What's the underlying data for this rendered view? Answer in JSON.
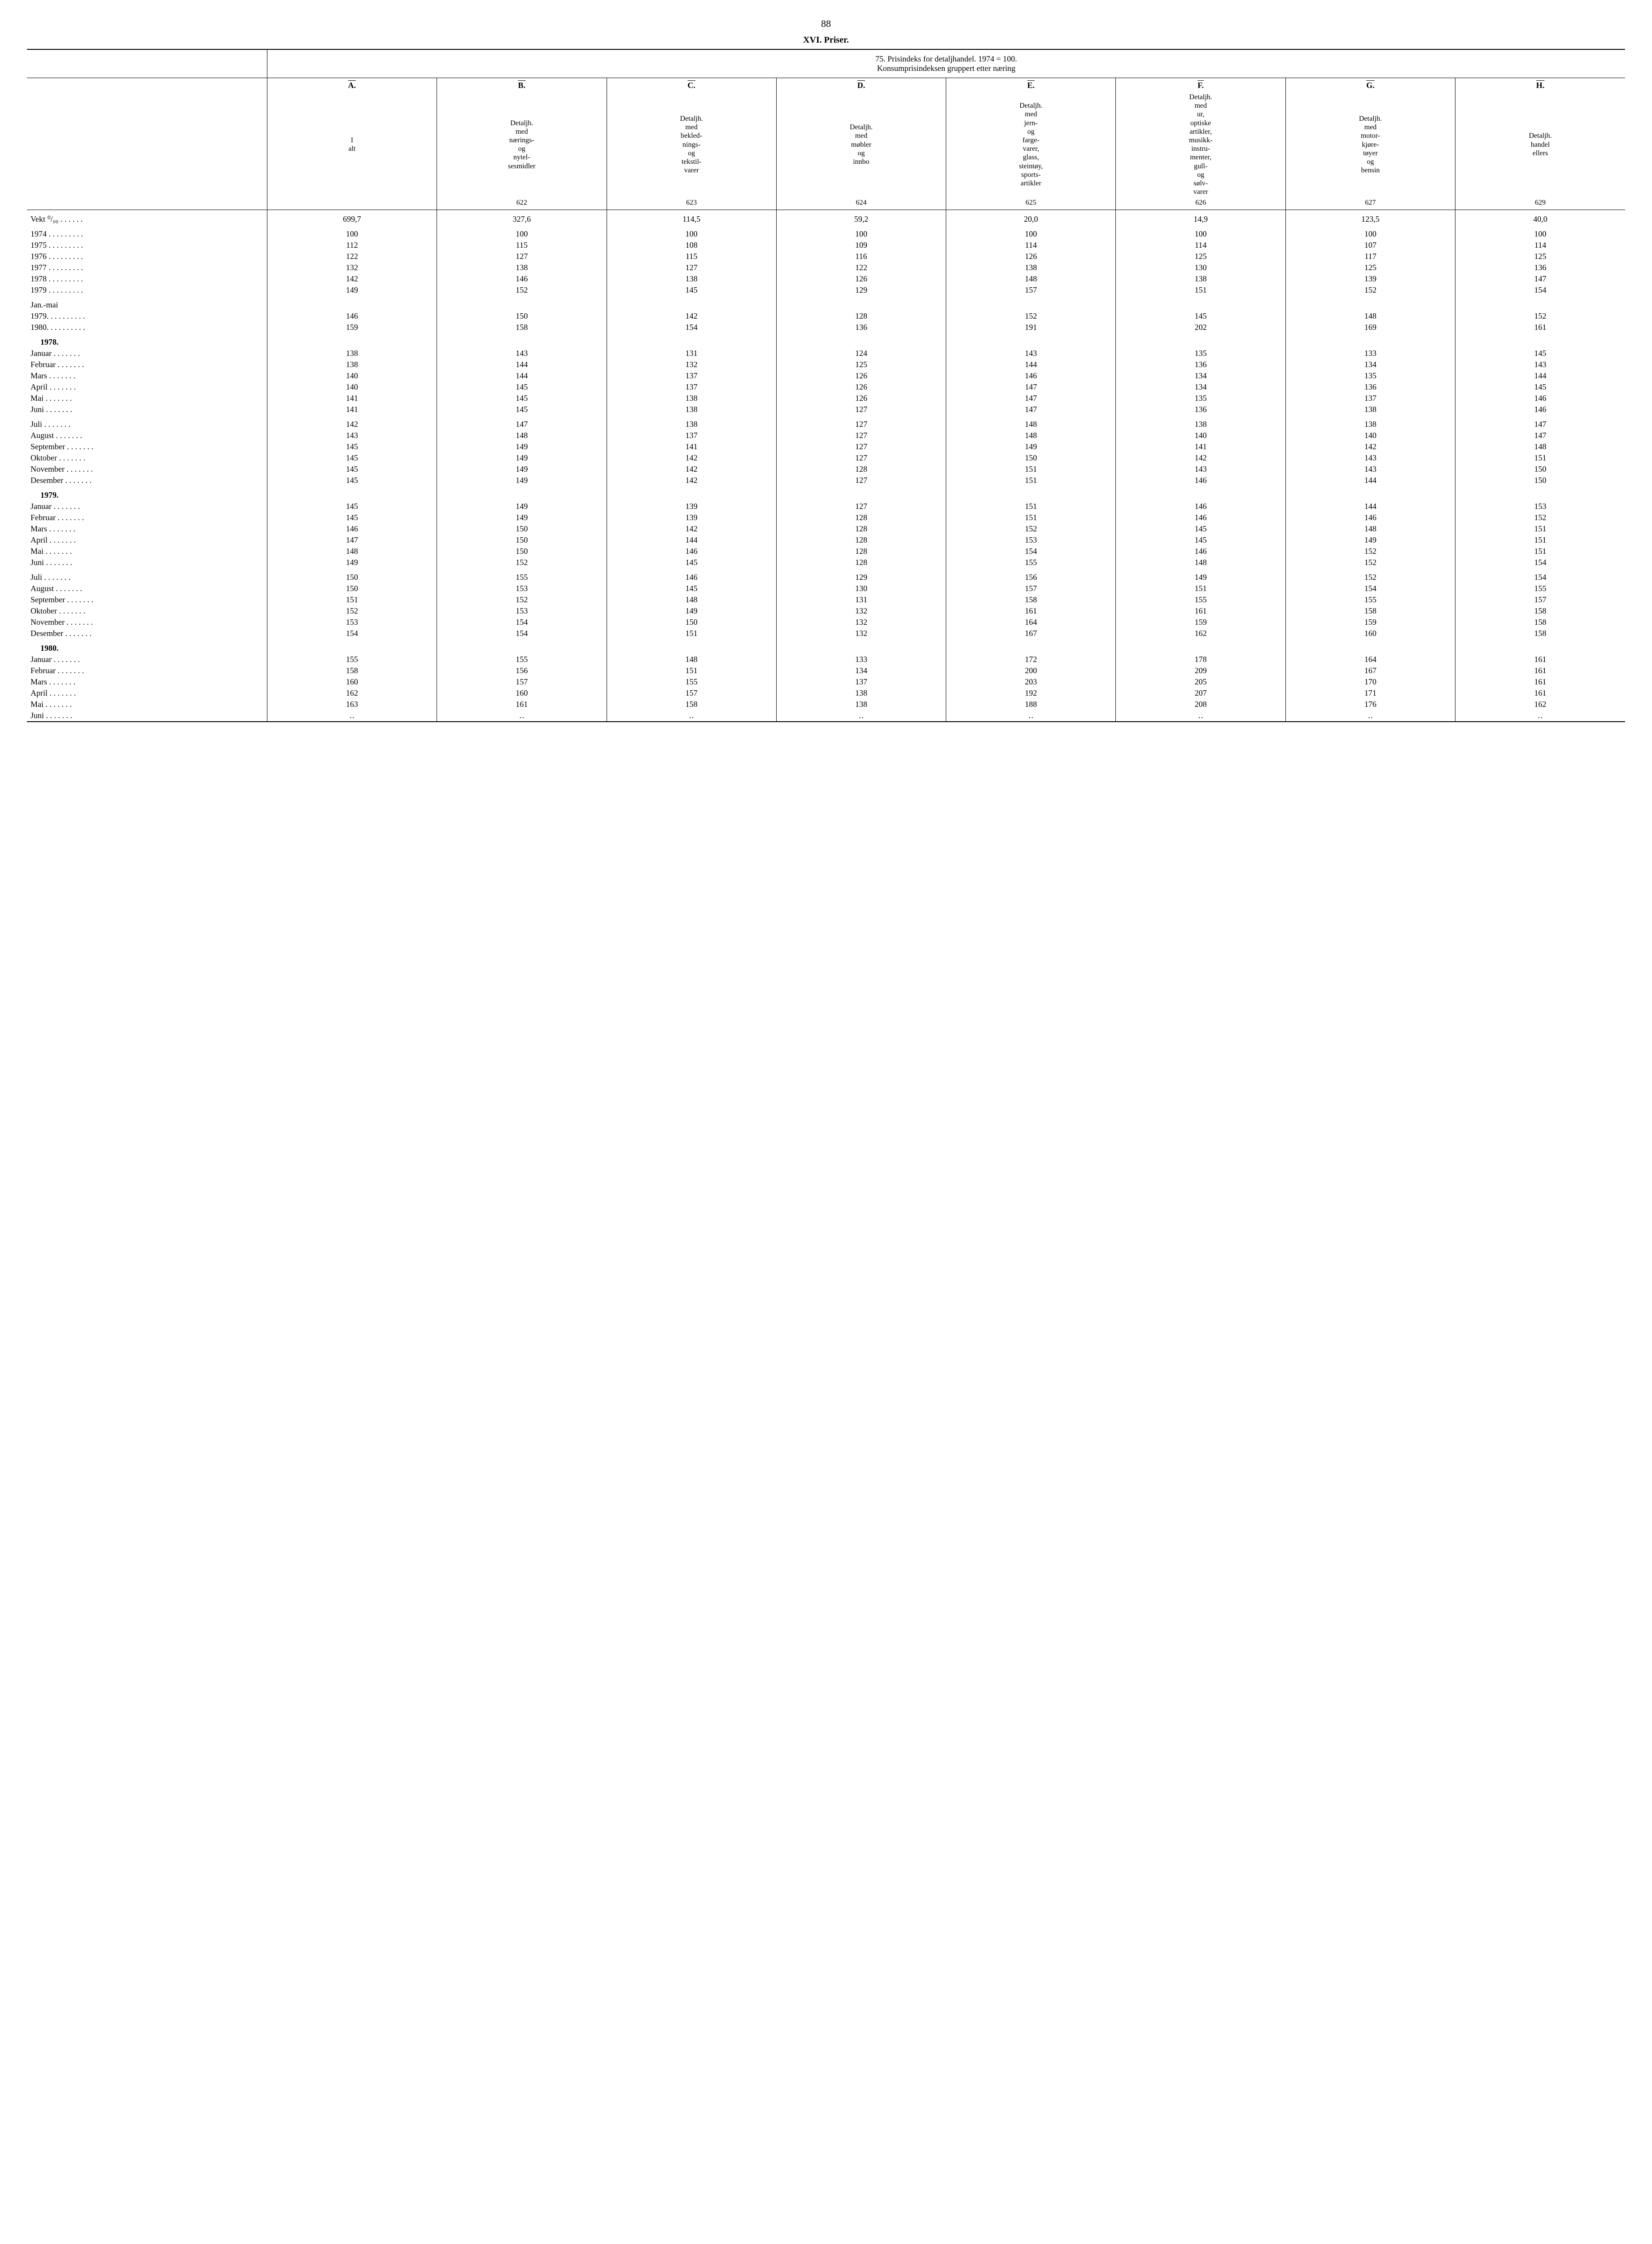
{
  "page_number": "88",
  "section_title": "XVI. Priser.",
  "table_title_line1": "75. Prisindeks for detaljhandel. 1974 = 100.",
  "table_title_line2": "Konsumprisindeksen gruppert etter næring",
  "columns": [
    {
      "letter": "A.",
      "desc": "I alt",
      "code": ""
    },
    {
      "letter": "B.",
      "desc": "Detaljh. med nærings- og nytel- sesmidler",
      "code": "622"
    },
    {
      "letter": "C.",
      "desc": "Detaljh. med bekled- nings- og tekstil- varer",
      "code": "623"
    },
    {
      "letter": "D.",
      "desc": "Detaljh. med møbler og innbo",
      "code": "624"
    },
    {
      "letter": "E.",
      "desc": "Detaljh. med jern- og farge- varer, glass, steintøy, sports- artikler",
      "code": "625"
    },
    {
      "letter": "F.",
      "desc": "Detaljh. med ur, optiske artikler, musikk- instru- menter, gull- og sølv- varer",
      "code": "626"
    },
    {
      "letter": "G.",
      "desc": "Detaljh. med motor- kjøre- tøyer og bensin",
      "code": "627"
    },
    {
      "letter": "H.",
      "desc": "Detaljh. handel ellers",
      "code": "629"
    }
  ],
  "weight_label": "Vekt ⁰/₀₀ . . . . . .",
  "weights": [
    "699,7",
    "327,6",
    "114,5",
    "59,2",
    "20,0",
    "14,9",
    "123,5",
    "40,0"
  ],
  "annual": [
    {
      "label": "1974",
      "v": [
        "100",
        "100",
        "100",
        "100",
        "100",
        "100",
        "100",
        "100"
      ]
    },
    {
      "label": "1975",
      "v": [
        "112",
        "115",
        "108",
        "109",
        "114",
        "114",
        "107",
        "114"
      ]
    },
    {
      "label": "1976",
      "v": [
        "122",
        "127",
        "115",
        "116",
        "126",
        "125",
        "117",
        "125"
      ]
    },
    {
      "label": "1977",
      "v": [
        "132",
        "138",
        "127",
        "122",
        "138",
        "130",
        "125",
        "136"
      ]
    },
    {
      "label": "1978",
      "v": [
        "142",
        "146",
        "138",
        "126",
        "148",
        "138",
        "139",
        "147"
      ]
    },
    {
      "label": "1979",
      "v": [
        "149",
        "152",
        "145",
        "129",
        "157",
        "151",
        "152",
        "154"
      ]
    }
  ],
  "janmai_label": "Jan.-mai",
  "janmai": [
    {
      "label": "1979",
      "v": [
        "146",
        "150",
        "142",
        "128",
        "152",
        "145",
        "148",
        "152"
      ]
    },
    {
      "label": "1980",
      "v": [
        "159",
        "158",
        "154",
        "136",
        "191",
        "202",
        "169",
        "161"
      ]
    }
  ],
  "blocks": [
    {
      "year": "1978.",
      "firstHalf": [
        {
          "label": "Januar",
          "v": [
            "138",
            "143",
            "131",
            "124",
            "143",
            "135",
            "133",
            "145"
          ]
        },
        {
          "label": "Februar",
          "v": [
            "138",
            "144",
            "132",
            "125",
            "144",
            "136",
            "134",
            "143"
          ]
        },
        {
          "label": "Mars",
          "v": [
            "140",
            "144",
            "137",
            "126",
            "146",
            "134",
            "135",
            "144"
          ]
        },
        {
          "label": "April",
          "v": [
            "140",
            "145",
            "137",
            "126",
            "147",
            "134",
            "136",
            "145"
          ]
        },
        {
          "label": "Mai",
          "v": [
            "141",
            "145",
            "138",
            "126",
            "147",
            "135",
            "137",
            "146"
          ]
        },
        {
          "label": "Juni",
          "v": [
            "141",
            "145",
            "138",
            "127",
            "147",
            "136",
            "138",
            "146"
          ]
        }
      ],
      "secondHalf": [
        {
          "label": "Juli",
          "v": [
            "142",
            "147",
            "138",
            "127",
            "148",
            "138",
            "138",
            "147"
          ]
        },
        {
          "label": "August",
          "v": [
            "143",
            "148",
            "137",
            "127",
            "148",
            "140",
            "140",
            "147"
          ]
        },
        {
          "label": "September",
          "v": [
            "145",
            "149",
            "141",
            "127",
            "149",
            "141",
            "142",
            "148"
          ]
        },
        {
          "label": "Oktober",
          "v": [
            "145",
            "149",
            "142",
            "127",
            "150",
            "142",
            "143",
            "151"
          ]
        },
        {
          "label": "November",
          "v": [
            "145",
            "149",
            "142",
            "128",
            "151",
            "143",
            "143",
            "150"
          ]
        },
        {
          "label": "Desember",
          "v": [
            "145",
            "149",
            "142",
            "127",
            "151",
            "146",
            "144",
            "150"
          ]
        }
      ]
    },
    {
      "year": "1979.",
      "firstHalf": [
        {
          "label": "Januar",
          "v": [
            "145",
            "149",
            "139",
            "127",
            "151",
            "146",
            "144",
            "153"
          ]
        },
        {
          "label": "Februar",
          "v": [
            "145",
            "149",
            "139",
            "128",
            "151",
            "146",
            "146",
            "152"
          ]
        },
        {
          "label": "Mars",
          "v": [
            "146",
            "150",
            "142",
            "128",
            "152",
            "145",
            "148",
            "151"
          ]
        },
        {
          "label": "April",
          "v": [
            "147",
            "150",
            "144",
            "128",
            "153",
            "145",
            "149",
            "151"
          ]
        },
        {
          "label": "Mai",
          "v": [
            "148",
            "150",
            "146",
            "128",
            "154",
            "146",
            "152",
            "151"
          ]
        },
        {
          "label": "Juni",
          "v": [
            "149",
            "152",
            "145",
            "128",
            "155",
            "148",
            "152",
            "154"
          ]
        }
      ],
      "secondHalf": [
        {
          "label": "Juli",
          "v": [
            "150",
            "155",
            "146",
            "129",
            "156",
            "149",
            "152",
            "154"
          ]
        },
        {
          "label": "August",
          "v": [
            "150",
            "153",
            "145",
            "130",
            "157",
            "151",
            "154",
            "155"
          ]
        },
        {
          "label": "September",
          "v": [
            "151",
            "152",
            "148",
            "131",
            "158",
            "155",
            "155",
            "157"
          ]
        },
        {
          "label": "Oktober",
          "v": [
            "152",
            "153",
            "149",
            "132",
            "161",
            "161",
            "158",
            "158"
          ]
        },
        {
          "label": "November",
          "v": [
            "153",
            "154",
            "150",
            "132",
            "164",
            "159",
            "159",
            "158"
          ]
        },
        {
          "label": "Desember",
          "v": [
            "154",
            "154",
            "151",
            "132",
            "167",
            "162",
            "160",
            "158"
          ]
        }
      ]
    },
    {
      "year": "1980.",
      "firstHalf": [
        {
          "label": "Januar",
          "v": [
            "155",
            "155",
            "148",
            "133",
            "172",
            "178",
            "164",
            "161"
          ]
        },
        {
          "label": "Februar",
          "v": [
            "158",
            "156",
            "151",
            "134",
            "200",
            "209",
            "167",
            "161"
          ]
        },
        {
          "label": "Mars",
          "v": [
            "160",
            "157",
            "155",
            "137",
            "203",
            "205",
            "170",
            "161"
          ]
        },
        {
          "label": "April",
          "v": [
            "162",
            "160",
            "157",
            "138",
            "192",
            "207",
            "171",
            "161"
          ]
        },
        {
          "label": "Mai",
          "v": [
            "163",
            "161",
            "158",
            "138",
            "188",
            "208",
            "176",
            "162"
          ]
        },
        {
          "label": "Juni",
          "v": [
            "‥",
            "‥",
            "‥",
            "‥",
            "‥",
            "‥",
            "‥",
            "‥"
          ]
        }
      ],
      "secondHalf": []
    }
  ]
}
